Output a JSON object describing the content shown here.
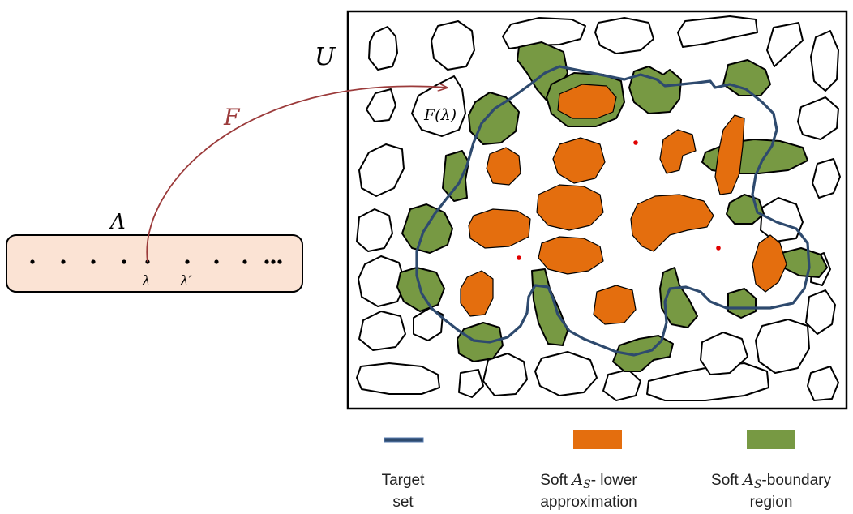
{
  "universe_label": "U",
  "lambda_set_label": "Λ",
  "mapping_label": "F",
  "image_label": "F(λ)",
  "element_labels": [
    "λ",
    "λ′"
  ],
  "colors": {
    "target_set": "#2e4a6e",
    "lower_approximation": "#e46e0e",
    "boundary_region": "#779943",
    "lambda_box_fill": "#fbe3d4",
    "arrow": "#9b3a3a",
    "red_dot": "#e00000"
  },
  "legend": [
    {
      "kind": "line",
      "line1": "Target",
      "line2": "set",
      "color": "#2e4a6e"
    },
    {
      "kind": "swatch",
      "line1_prefix": "Soft ",
      "line1_sym": "A",
      "line1_sub": "S",
      "line1_suffix": "- lower",
      "line2": "approximation",
      "color": "#e46e0e"
    },
    {
      "kind": "swatch",
      "line1_prefix": "Soft ",
      "line1_sym": "A",
      "line1_sub": "S",
      "line1_suffix": "-boundary",
      "line2": "region",
      "color": "#779943"
    }
  ]
}
